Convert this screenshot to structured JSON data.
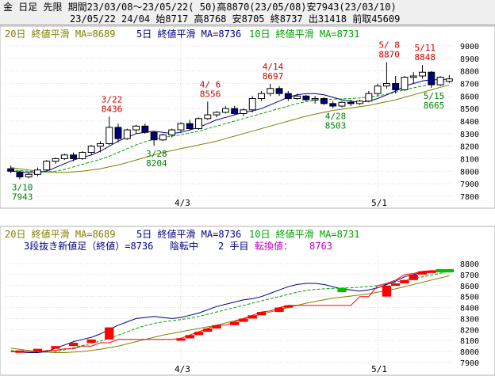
{
  "header": {
    "line1": "金 日足 先限 期間23/03/08～23/05/22( 50)高8870(23/05/08)安7943(23/03/10)",
    "line2": "23/05/22 24/04 始8717 高8768 安8705 終8737 出31418 前取45609"
  },
  "colors": {
    "up_candle": "#ffffff",
    "down_candle": "#000080",
    "ma20": "#808000",
    "ma5": "#000080",
    "ma10": "#00a000",
    "high_label": "#d00000",
    "low_label": "#008000",
    "brick_up": "#ff0000",
    "brick_down": "#00c000",
    "status_purple": "#c000c0"
  },
  "legend_top": {
    "ma20": "20日 終値平滑 MA=8689",
    "ma5": "5日 終値平滑 MA=8736",
    "ma10": "10日 終値平滑 MA=8731"
  },
  "legend_bottom": {
    "ma20": "20日 終値平滑 MA=8689",
    "ma5": "5日 終値平滑 MA=8736",
    "ma10": "10日 終値平滑 MA=8731",
    "renko_title": "3段抜き新値足（終値）=8736",
    "trend_word": "陰転中",
    "step": "2 手目",
    "turn_label": "転換値：",
    "turn_value": "8763"
  },
  "chart_data": [
    {
      "type": "candlestick",
      "title": "",
      "ylim": [
        7800,
        9000
      ],
      "yticks": [
        7800,
        7900,
        8000,
        8100,
        8200,
        8300,
        8400,
        8500,
        8600,
        8700,
        8800,
        8900,
        9000
      ],
      "x_tick_labels": [
        {
          "index": 19,
          "label": "4/3"
        },
        {
          "index": 41,
          "label": "5/1"
        }
      ],
      "grid": true,
      "candles": [
        [
          8020,
          8045,
          7985,
          8000
        ],
        [
          7990,
          8005,
          7935,
          7955
        ],
        [
          7955,
          7990,
          7943,
          7975
        ],
        [
          7975,
          8030,
          7960,
          8010
        ],
        [
          8010,
          8090,
          8000,
          8080
        ],
        [
          8080,
          8110,
          8060,
          8100
        ],
        [
          8100,
          8140,
          8090,
          8130
        ],
        [
          8130,
          8150,
          8080,
          8100
        ],
        [
          8100,
          8160,
          8090,
          8150
        ],
        [
          8150,
          8210,
          8130,
          8200
        ],
        [
          8200,
          8240,
          8150,
          8220
        ],
        [
          8220,
          8436,
          8210,
          8350
        ],
        [
          8350,
          8380,
          8230,
          8260
        ],
        [
          8260,
          8340,
          8250,
          8330
        ],
        [
          8330,
          8370,
          8300,
          8360
        ],
        [
          8360,
          8380,
          8300,
          8310
        ],
        [
          8310,
          8320,
          8204,
          8250
        ],
        [
          8250,
          8300,
          8240,
          8290
        ],
        [
          8290,
          8340,
          8270,
          8330
        ],
        [
          8330,
          8390,
          8310,
          8380
        ],
        [
          8380,
          8410,
          8330,
          8340
        ],
        [
          8340,
          8430,
          8330,
          8420
        ],
        [
          8420,
          8556,
          8410,
          8450
        ],
        [
          8450,
          8480,
          8430,
          8470
        ],
        [
          8470,
          8520,
          8460,
          8500
        ],
        [
          8500,
          8520,
          8450,
          8460
        ],
        [
          8460,
          8500,
          8440,
          8490
        ],
        [
          8490,
          8600,
          8470,
          8580
        ],
        [
          8580,
          8640,
          8560,
          8620
        ],
        [
          8620,
          8697,
          8600,
          8660
        ],
        [
          8660,
          8680,
          8600,
          8620
        ],
        [
          8620,
          8640,
          8560,
          8580
        ],
        [
          8580,
          8620,
          8570,
          8600
        ],
        [
          8600,
          8610,
          8560,
          8570
        ],
        [
          8570,
          8600,
          8540,
          8580
        ],
        [
          8580,
          8590,
          8530,
          8540
        ],
        [
          8540,
          8560,
          8503,
          8520
        ],
        [
          8520,
          8560,
          8510,
          8550
        ],
        [
          8550,
          8570,
          8520,
          8540
        ],
        [
          8540,
          8570,
          8530,
          8560
        ],
        [
          8560,
          8640,
          8550,
          8620
        ],
        [
          8620,
          8700,
          8600,
          8680
        ],
        [
          8680,
          8870,
          8660,
          8700
        ],
        [
          8700,
          8760,
          8620,
          8650
        ],
        [
          8650,
          8760,
          8640,
          8750
        ],
        [
          8750,
          8790,
          8700,
          8760
        ],
        [
          8760,
          8848,
          8740,
          8790
        ],
        [
          8790,
          8800,
          8665,
          8690
        ],
        [
          8690,
          8760,
          8680,
          8750
        ],
        [
          8717,
          8768,
          8705,
          8737
        ]
      ],
      "ma5": [
        8000,
        7995,
        7990,
        7990,
        8000,
        8030,
        8060,
        8090,
        8110,
        8130,
        8160,
        8200,
        8240,
        8270,
        8300,
        8310,
        8320,
        8310,
        8300,
        8310,
        8330,
        8350,
        8380,
        8410,
        8430,
        8450,
        8470,
        8480,
        8500,
        8530,
        8560,
        8590,
        8610,
        8620,
        8620,
        8610,
        8590,
        8570,
        8560,
        8550,
        8560,
        8580,
        8610,
        8640,
        8680,
        8700,
        8720,
        8730,
        8730,
        8736
      ],
      "ma10": [
        8010,
        8005,
        8000,
        7995,
        7995,
        8000,
        8015,
        8035,
        8055,
        8075,
        8095,
        8120,
        8150,
        8180,
        8210,
        8235,
        8255,
        8270,
        8280,
        8290,
        8305,
        8320,
        8340,
        8360,
        8380,
        8400,
        8420,
        8440,
        8460,
        8480,
        8500,
        8520,
        8540,
        8555,
        8565,
        8570,
        8575,
        8578,
        8580,
        8585,
        8592,
        8600,
        8615,
        8630,
        8650,
        8665,
        8680,
        8695,
        8712,
        8731
      ],
      "ma20": [
        8030,
        8020,
        8010,
        8000,
        7995,
        7990,
        7990,
        7995,
        8000,
        8010,
        8020,
        8035,
        8050,
        8070,
        8090,
        8110,
        8130,
        8150,
        8165,
        8180,
        8195,
        8210,
        8225,
        8240,
        8260,
        8280,
        8300,
        8320,
        8340,
        8360,
        8380,
        8400,
        8420,
        8440,
        8455,
        8470,
        8485,
        8495,
        8505,
        8515,
        8525,
        8540,
        8555,
        8570,
        8590,
        8610,
        8630,
        8650,
        8670,
        8689
      ],
      "annotations": [
        {
          "index": 11,
          "date": "3/22",
          "value": "8436",
          "kind": "high"
        },
        {
          "index": 22,
          "date": "4/ 6",
          "value": "8556",
          "kind": "high"
        },
        {
          "index": 29,
          "date": "4/14",
          "value": "8697",
          "kind": "high"
        },
        {
          "index": 42,
          "date": "5/ 8",
          "value": "8870",
          "kind": "high"
        },
        {
          "index": 46,
          "date": "5/11",
          "value": "8848",
          "kind": "high"
        },
        {
          "index": 1,
          "date": "3/10",
          "value": "7943",
          "kind": "low"
        },
        {
          "index": 16,
          "date": "3/28",
          "value": "8204",
          "kind": "low"
        },
        {
          "index": 36,
          "date": "4/28",
          "value": "8503",
          "kind": "low"
        },
        {
          "index": 47,
          "date": "5/15",
          "value": "8665",
          "kind": "low"
        }
      ]
    },
    {
      "type": "renko",
      "title": "",
      "ylim": [
        7900,
        8800
      ],
      "yticks": [
        7900,
        8000,
        8100,
        8200,
        8300,
        8400,
        8500,
        8600,
        8700,
        8800
      ],
      "x_tick_labels": [
        {
          "index": 19,
          "label": "4/3"
        },
        {
          "index": 41,
          "label": "5/1"
        }
      ],
      "grid": true,
      "line_value": [
        8000,
        8000,
        8000,
        8000,
        8010,
        8010,
        8025,
        8025,
        8050,
        8050,
        8080,
        8080,
        8110,
        8110,
        8110,
        8110,
        8110,
        8110,
        8110,
        8120,
        8150,
        8180,
        8210,
        8240,
        8240,
        8270,
        8300,
        8330,
        8360,
        8370,
        8400,
        8420,
        8420,
        8420,
        8420,
        8420,
        8420,
        8420,
        8420,
        8500,
        8500,
        8600,
        8620,
        8650,
        8700,
        8710,
        8730,
        8736,
        8736,
        8736
      ],
      "bricks": [
        {
          "index": 1,
          "from": 8000,
          "to": 8010,
          "dir": "up"
        },
        {
          "index": 3,
          "from": 8010,
          "to": 8025,
          "dir": "up"
        },
        {
          "index": 5,
          "from": 8025,
          "to": 8050,
          "dir": "up"
        },
        {
          "index": 7,
          "from": 8050,
          "to": 8080,
          "dir": "up"
        },
        {
          "index": 9,
          "from": 8080,
          "to": 8110,
          "dir": "up"
        },
        {
          "index": 11,
          "from": 8110,
          "to": 8220,
          "dir": "up"
        },
        {
          "index": 19,
          "from": 8110,
          "to": 8120,
          "dir": "up"
        },
        {
          "index": 20,
          "from": 8120,
          "to": 8150,
          "dir": "up"
        },
        {
          "index": 21,
          "from": 8150,
          "to": 8180,
          "dir": "up"
        },
        {
          "index": 22,
          "from": 8180,
          "to": 8210,
          "dir": "up"
        },
        {
          "index": 23,
          "from": 8210,
          "to": 8240,
          "dir": "up"
        },
        {
          "index": 25,
          "from": 8240,
          "to": 8270,
          "dir": "up"
        },
        {
          "index": 26,
          "from": 8270,
          "to": 8300,
          "dir": "up"
        },
        {
          "index": 27,
          "from": 8300,
          "to": 8330,
          "dir": "up"
        },
        {
          "index": 28,
          "from": 8330,
          "to": 8360,
          "dir": "up"
        },
        {
          "index": 30,
          "from": 8360,
          "to": 8400,
          "dir": "up"
        },
        {
          "index": 31,
          "from": 8400,
          "to": 8420,
          "dir": "up"
        },
        {
          "index": 37,
          "from": 8580,
          "to": 8540,
          "dir": "down"
        },
        {
          "index": 42,
          "from": 8500,
          "to": 8600,
          "dir": "up"
        },
        {
          "index": 43,
          "from": 8600,
          "to": 8620,
          "dir": "up"
        },
        {
          "index": 44,
          "from": 8620,
          "to": 8650,
          "dir": "up"
        },
        {
          "index": 45,
          "from": 8650,
          "to": 8700,
          "dir": "up"
        },
        {
          "index": 46,
          "from": 8700,
          "to": 8730,
          "dir": "up"
        },
        {
          "index": 47,
          "from": 8730,
          "to": 8736,
          "dir": "up"
        },
        {
          "index": 48,
          "from": 8750,
          "to": 8720,
          "dir": "down"
        },
        {
          "index": 49,
          "from": 8750,
          "to": 8720,
          "dir": "down"
        }
      ]
    }
  ]
}
